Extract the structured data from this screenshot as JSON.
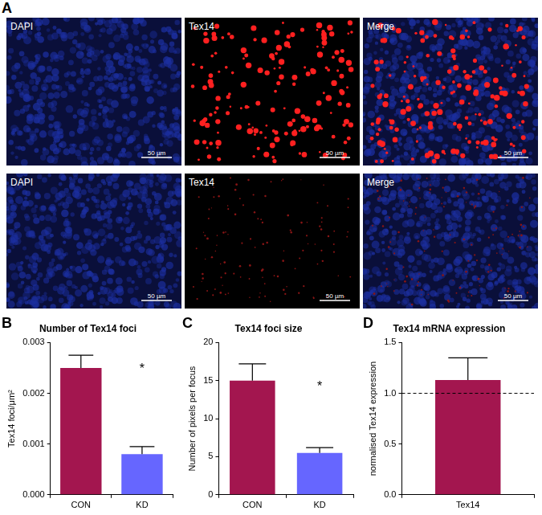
{
  "image_panel": {
    "panel": "A",
    "rows": [
      [
        {
          "label": "DAPI",
          "scale_bar": "50 µm"
        },
        {
          "label": "Tex14",
          "scale_bar": "50 µm"
        },
        {
          "label": "Merge",
          "scale_bar": "50 µm"
        }
      ],
      [
        {
          "label": "DAPI",
          "scale_bar": "50 µm"
        },
        {
          "label": "Tex14",
          "scale_bar": "50 µm"
        },
        {
          "label": "Merge",
          "scale_bar": "50 µm"
        }
      ]
    ]
  },
  "chart_data": [
    {
      "panel": "B",
      "type": "bar",
      "title": "Number of Tex14 foci",
      "y_label": "Tex14 foci/μm²",
      "categories": [
        "CON",
        "KD"
      ],
      "values": [
        0.0025,
        0.0008
      ],
      "errors": [
        0.00025,
        0.00015
      ],
      "colors": [
        "#a3164f",
        "#6666ff"
      ],
      "ylim": [
        0,
        0.003
      ],
      "yticks": [
        {
          "value": 0,
          "label": "0.000"
        },
        {
          "value": 0.001,
          "label": "0.001"
        },
        {
          "value": 0.002,
          "label": "0.002"
        },
        {
          "value": 0.003,
          "label": "0.003"
        }
      ],
      "grid": false,
      "annotations": [
        {
          "text": "*",
          "x": "KD",
          "y": 0.0026
        }
      ]
    },
    {
      "panel": "C",
      "type": "bar",
      "title": "Tex14 foci size",
      "y_label": "Number of pixels per focus",
      "categories": [
        "CON",
        "KD"
      ],
      "values": [
        15,
        5.5
      ],
      "errors": [
        2.2,
        0.7
      ],
      "colors": [
        "#a3164f",
        "#6666ff"
      ],
      "ylim": [
        0,
        20
      ],
      "yticks": [
        0,
        5,
        10,
        15,
        20
      ],
      "grid": false,
      "annotations": [
        {
          "text": "*",
          "x": "KD",
          "y": 15
        }
      ]
    },
    {
      "panel": "D",
      "type": "bar",
      "title": "Tex14 mRNA expression",
      "y_label": "normalised Tex14 expression",
      "categories": [
        "Tex14"
      ],
      "values": [
        1.13
      ],
      "errors": [
        0.22
      ],
      "colors": [
        "#a3164f"
      ],
      "ylim": [
        0,
        1.5
      ],
      "yticks": [
        {
          "value": 0,
          "label": "0.0"
        },
        {
          "value": 0.5,
          "label": "0.5"
        },
        {
          "value": 1,
          "label": "1.0"
        },
        {
          "value": 1.5,
          "label": "1.5"
        }
      ],
      "grid": false,
      "reference_line": {
        "y": 1,
        "line_style": "dashed"
      }
    }
  ]
}
